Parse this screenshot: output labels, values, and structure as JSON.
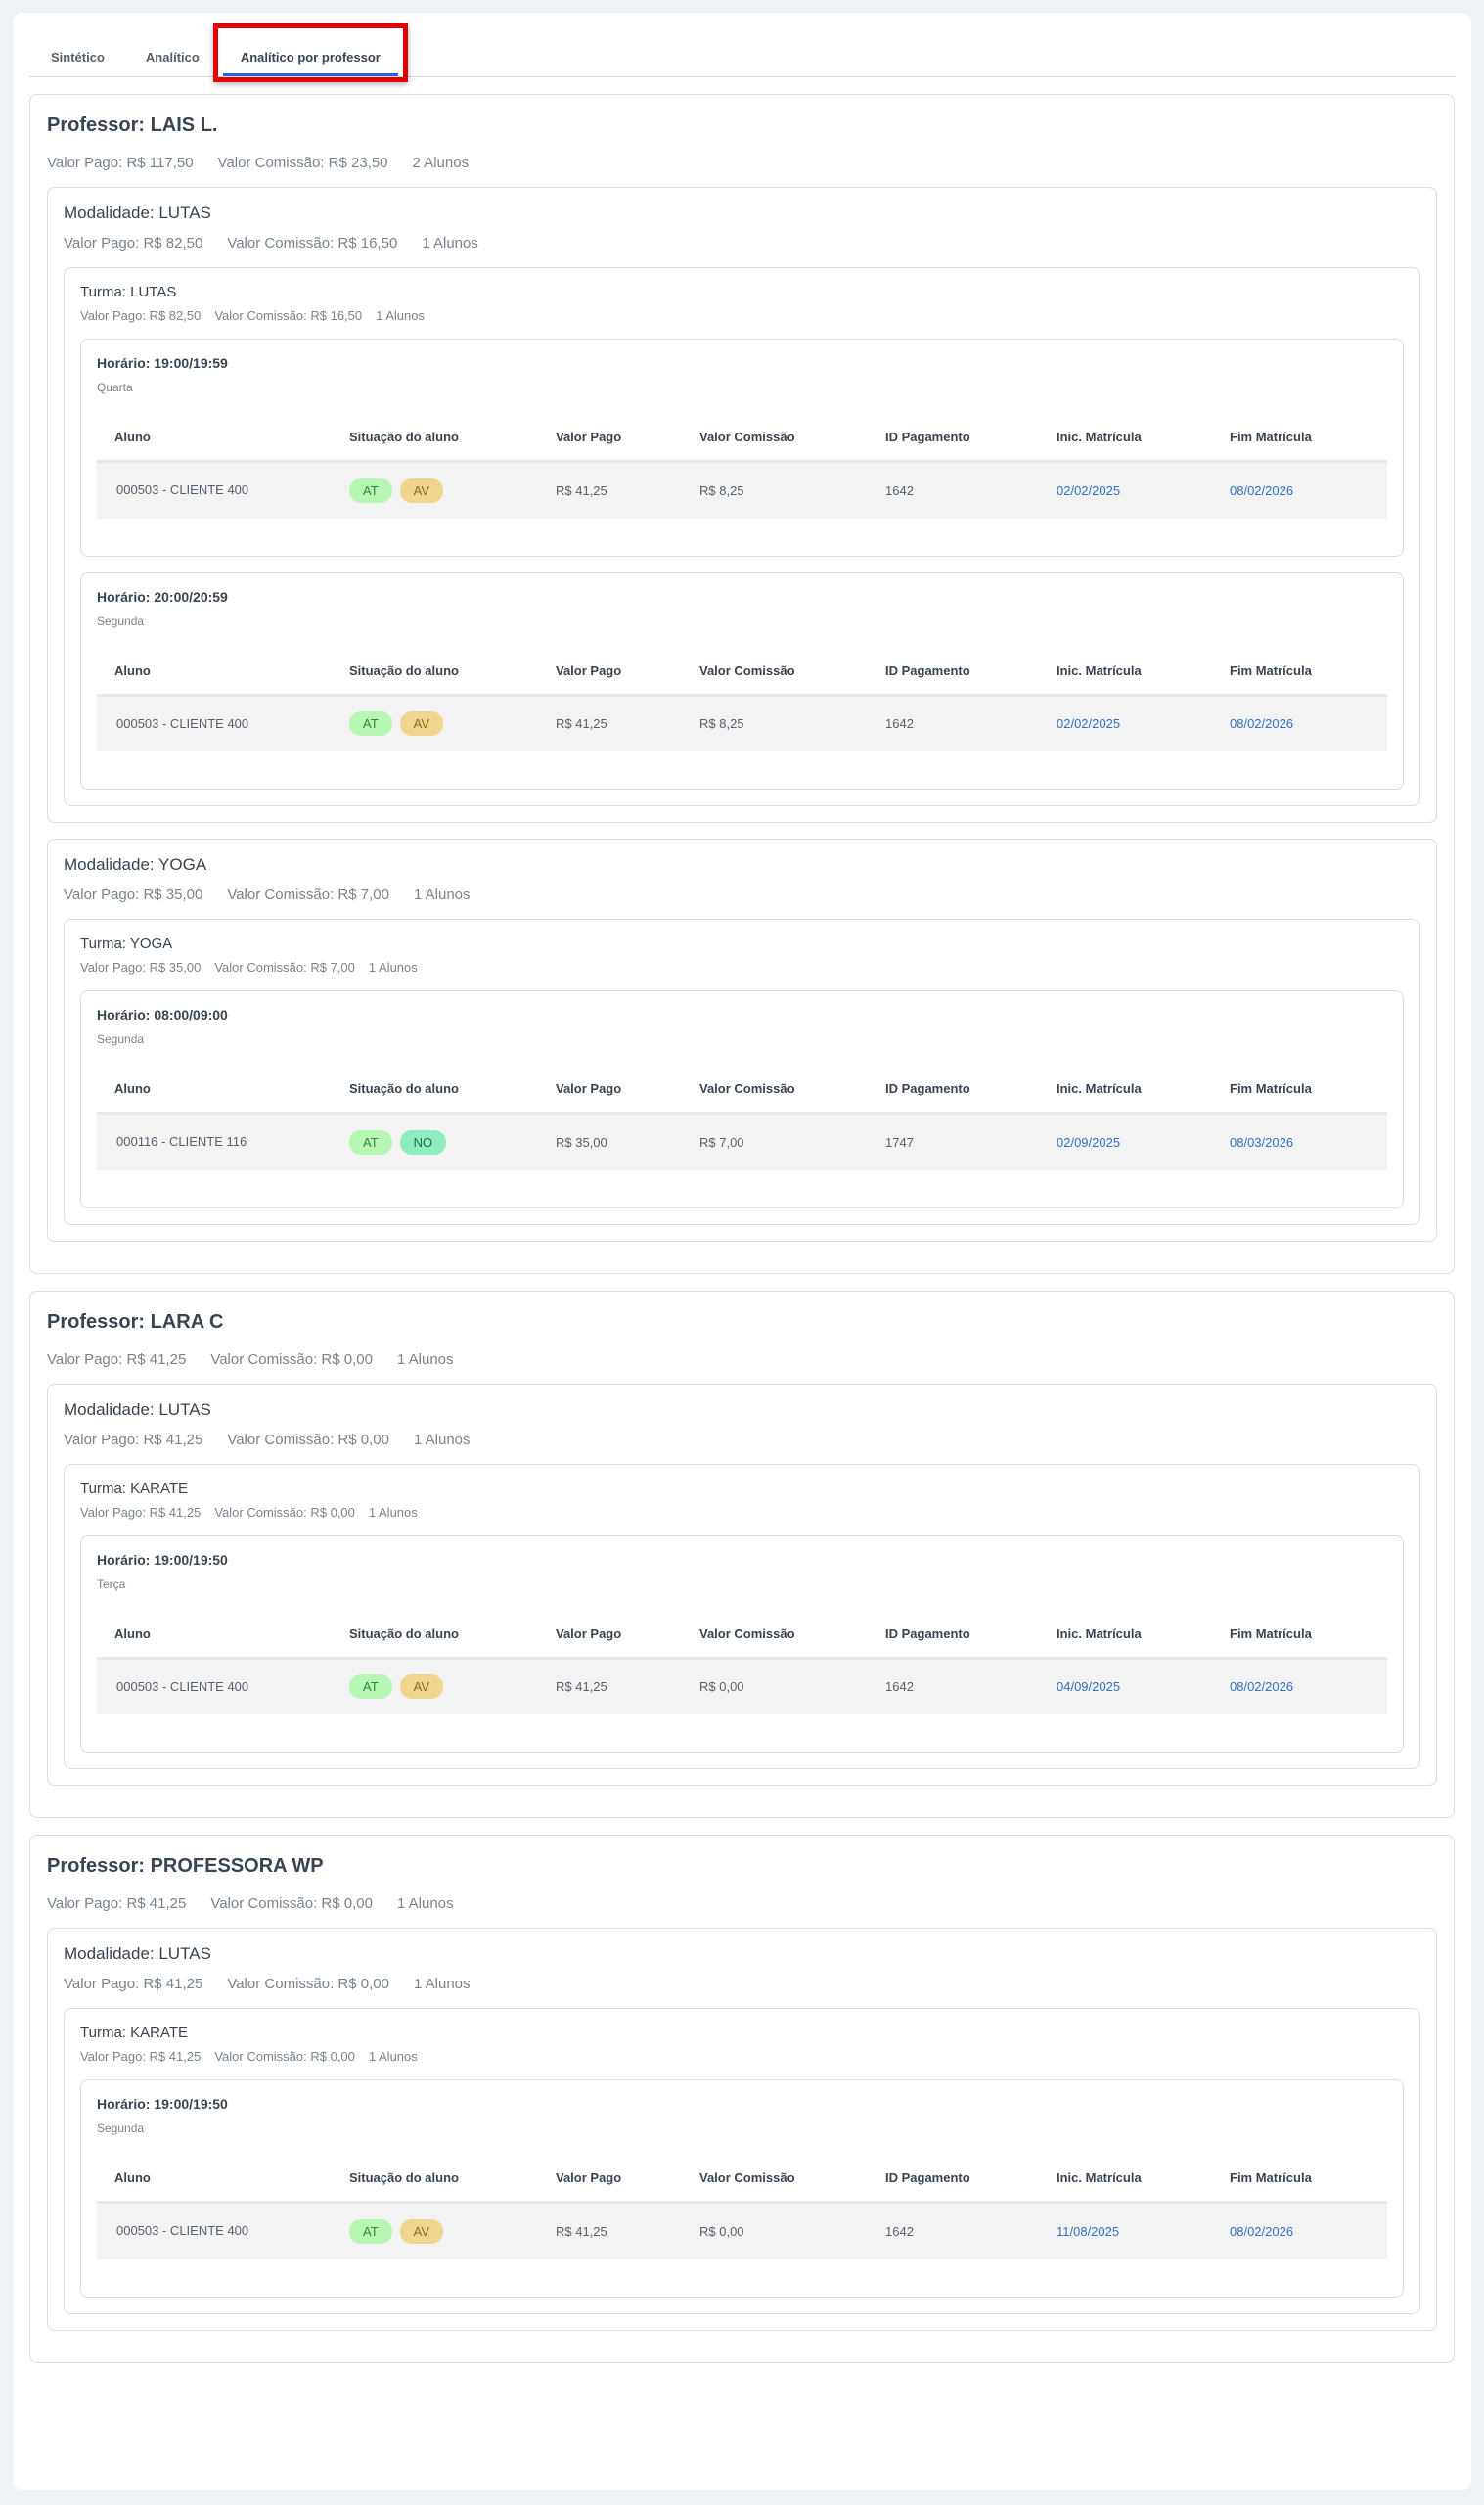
{
  "tabs": [
    {
      "label": "Sintético",
      "active": false
    },
    {
      "label": "Analítico",
      "active": false
    },
    {
      "label": "Analítico por professor",
      "active": true
    }
  ],
  "badge_colors": {
    "AT": {
      "bg": "#b6f7b4",
      "fg": "#2e8a2e"
    },
    "AV": {
      "bg": "#efd58e",
      "fg": "#8a6a1e"
    },
    "NO": {
      "bg": "#8eedc0",
      "fg": "#1f6b4a"
    }
  },
  "columns": [
    "Aluno",
    "Situação do aluno",
    "Valor Pago",
    "Valor Comissão",
    "ID Pagamento",
    "Inic. Matrícula",
    "Fim Matrícula"
  ],
  "professors": [
    {
      "title": "Professor: LAIS L.",
      "valor_pago": "Valor Pago: R$ 117,50",
      "valor_comissao": "Valor Comissão: R$ 23,50",
      "alunos": "2 Alunos",
      "modalidades": [
        {
          "title": "Modalidade: LUTAS",
          "valor_pago": "Valor Pago: R$ 82,50",
          "valor_comissao": "Valor Comissão: R$ 16,50",
          "alunos": "1 Alunos",
          "turmas": [
            {
              "title": "Turma: LUTAS",
              "valor_pago": "Valor Pago: R$ 82,50",
              "valor_comissao": "Valor Comissão: R$ 16,50",
              "alunos": "1 Alunos",
              "horarios": [
                {
                  "title": "Horário: 19:00/19:59",
                  "day": "Quarta",
                  "rows": [
                    {
                      "aluno": "000503 -  CLIENTE 400",
                      "badges": [
                        "AT",
                        "AV"
                      ],
                      "valor_pago": "R$ 41,25",
                      "valor_comissao": "R$ 8,25",
                      "id_pagamento": "1642",
                      "inicio": "02/02/2025",
                      "fim": "08/02/2026"
                    }
                  ]
                },
                {
                  "title": "Horário: 20:00/20:59",
                  "day": "Segunda",
                  "rows": [
                    {
                      "aluno": "000503 -  CLIENTE 400",
                      "badges": [
                        "AT",
                        "AV"
                      ],
                      "valor_pago": "R$ 41,25",
                      "valor_comissao": "R$ 8,25",
                      "id_pagamento": "1642",
                      "inicio": "02/02/2025",
                      "fim": "08/02/2026"
                    }
                  ]
                }
              ]
            }
          ]
        },
        {
          "title": "Modalidade: YOGA",
          "valor_pago": "Valor Pago: R$ 35,00",
          "valor_comissao": "Valor Comissão: R$ 7,00",
          "alunos": "1 Alunos",
          "turmas": [
            {
              "title": "Turma: YOGA",
              "valor_pago": "Valor Pago: R$ 35,00",
              "valor_comissao": "Valor Comissão: R$ 7,00",
              "alunos": "1 Alunos",
              "horarios": [
                {
                  "title": "Horário: 08:00/09:00",
                  "day": "Segunda",
                  "rows": [
                    {
                      "aluno": "000116 -  CLIENTE 116",
                      "badges": [
                        "AT",
                        "NO"
                      ],
                      "valor_pago": "R$ 35,00",
                      "valor_comissao": "R$ 7,00",
                      "id_pagamento": "1747",
                      "inicio": "02/09/2025",
                      "fim": "08/03/2026"
                    }
                  ]
                }
              ]
            }
          ]
        }
      ]
    },
    {
      "title": "Professor: LARA C",
      "valor_pago": "Valor Pago: R$ 41,25",
      "valor_comissao": "Valor Comissão: R$ 0,00",
      "alunos": "1 Alunos",
      "modalidades": [
        {
          "title": "Modalidade: LUTAS",
          "valor_pago": "Valor Pago: R$ 41,25",
          "valor_comissao": "Valor Comissão: R$ 0,00",
          "alunos": "1 Alunos",
          "turmas": [
            {
              "title": "Turma: KARATE",
              "valor_pago": "Valor Pago: R$ 41,25",
              "valor_comissao": "Valor Comissão: R$ 0,00",
              "alunos": "1 Alunos",
              "horarios": [
                {
                  "title": "Horário: 19:00/19:50",
                  "day": "Terça",
                  "rows": [
                    {
                      "aluno": "000503 -  CLIENTE 400",
                      "badges": [
                        "AT",
                        "AV"
                      ],
                      "valor_pago": "R$ 41,25",
                      "valor_comissao": "R$ 0,00",
                      "id_pagamento": "1642",
                      "inicio": "04/09/2025",
                      "fim": "08/02/2026"
                    }
                  ]
                }
              ]
            }
          ]
        }
      ]
    },
    {
      "title": "Professor: PROFESSORA WP",
      "valor_pago": "Valor Pago: R$ 41,25",
      "valor_comissao": "Valor Comissão: R$ 0,00",
      "alunos": "1 Alunos",
      "modalidades": [
        {
          "title": "Modalidade: LUTAS",
          "valor_pago": "Valor Pago: R$ 41,25",
          "valor_comissao": "Valor Comissão: R$ 0,00",
          "alunos": "1 Alunos",
          "turmas": [
            {
              "title": "Turma: KARATE",
              "valor_pago": "Valor Pago: R$ 41,25",
              "valor_comissao": "Valor Comissão: R$ 0,00",
              "alunos": "1 Alunos",
              "horarios": [
                {
                  "title": "Horário: 19:00/19:50",
                  "day": "Segunda",
                  "rows": [
                    {
                      "aluno": "000503 -  CLIENTE 400",
                      "badges": [
                        "AT",
                        "AV"
                      ],
                      "valor_pago": "R$ 41,25",
                      "valor_comissao": "R$ 0,00",
                      "id_pagamento": "1642",
                      "inicio": "11/08/2025",
                      "fim": "08/02/2026"
                    }
                  ]
                }
              ]
            }
          ]
        }
      ]
    }
  ]
}
